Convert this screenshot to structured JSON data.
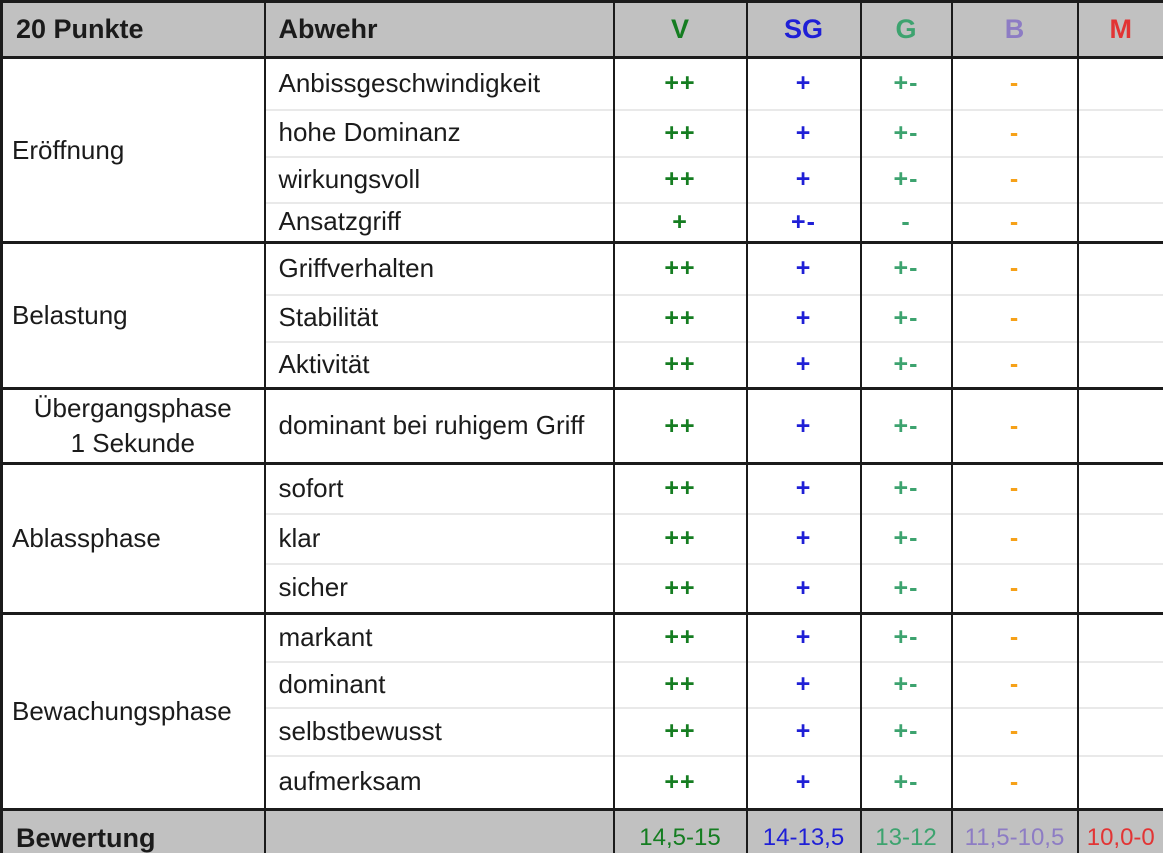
{
  "table": {
    "header": {
      "points_label": "20 Punkte",
      "category_label": "Abwehr",
      "grades": [
        {
          "label": "V",
          "color": "#157d21"
        },
        {
          "label": "SG",
          "color": "#1f1fd6"
        },
        {
          "label": "G",
          "color": "#3da36f"
        },
        {
          "label": "B",
          "color": "#8d7cc4"
        },
        {
          "label": "M",
          "color": "#e23434"
        }
      ]
    },
    "groups": [
      {
        "label": "Eröffnung",
        "rows": [
          {
            "criterion": "Anbissgeschwindigkeit",
            "marks": [
              "++",
              "+",
              "+-",
              "-",
              ""
            ]
          },
          {
            "criterion": "hohe Dominanz",
            "marks": [
              "++",
              "+",
              "+-",
              "-",
              ""
            ]
          },
          {
            "criterion": "wirkungsvoll",
            "marks": [
              "++",
              "+",
              "+-",
              "-",
              ""
            ]
          },
          {
            "criterion": "Ansatzgriff",
            "marks": [
              "+",
              "+-",
              "-",
              "-",
              ""
            ]
          }
        ]
      },
      {
        "label": "Belastung",
        "rows": [
          {
            "criterion": "Griffverhalten",
            "marks": [
              "++",
              "+",
              "+-",
              "-",
              ""
            ]
          },
          {
            "criterion": "Stabilität",
            "marks": [
              "++",
              "+",
              "+-",
              "-",
              ""
            ]
          },
          {
            "criterion": "Aktivität",
            "marks": [
              "++",
              "+",
              "+-",
              "-",
              ""
            ]
          }
        ]
      },
      {
        "label": "Übergangsphase",
        "label2": "1 Sekunde",
        "rows": [
          {
            "criterion": "dominant bei ruhigem Griff",
            "marks": [
              "++",
              "+",
              "+-",
              "-",
              ""
            ]
          }
        ]
      },
      {
        "label": "Ablassphase",
        "rows": [
          {
            "criterion": "sofort",
            "marks": [
              "++",
              "+",
              "+-",
              "-",
              ""
            ]
          },
          {
            "criterion": "klar",
            "marks": [
              "++",
              "+",
              "+-",
              "-",
              ""
            ]
          },
          {
            "criterion": "sicher",
            "marks": [
              "++",
              "+",
              "+-",
              "-",
              ""
            ]
          }
        ]
      },
      {
        "label": "Bewachungsphase",
        "rows": [
          {
            "criterion": "markant",
            "marks": [
              "++",
              "+",
              "+-",
              "-",
              ""
            ]
          },
          {
            "criterion": "dominant",
            "marks": [
              "++",
              "+",
              "+-",
              "-",
              ""
            ]
          },
          {
            "criterion": "selbstbewusst",
            "marks": [
              "++",
              "+",
              "+-",
              "-",
              ""
            ]
          },
          {
            "criterion": "aufmerksam",
            "marks": [
              "++",
              "+",
              "+-",
              "-",
              ""
            ]
          }
        ]
      }
    ],
    "footer": {
      "label": "Bewertung",
      "scores": [
        "14,5-15",
        "14-13,5",
        "13-12",
        "11,5-10,5",
        "10,0-0"
      ]
    }
  },
  "colors": {
    "grade_v_green": "#157d21",
    "grade_sg_blue": "#1f1fd6",
    "grade_g_teal": "#3da36f",
    "grade_b_purple": "#8d7cc4",
    "grade_m_red": "#e23434",
    "mark_minus_orange": "#f6a118",
    "header_footer_gray": "#c1c1c1",
    "grid_black": "#1b1b1b",
    "inner_line_gray": "#e9e9e9"
  }
}
